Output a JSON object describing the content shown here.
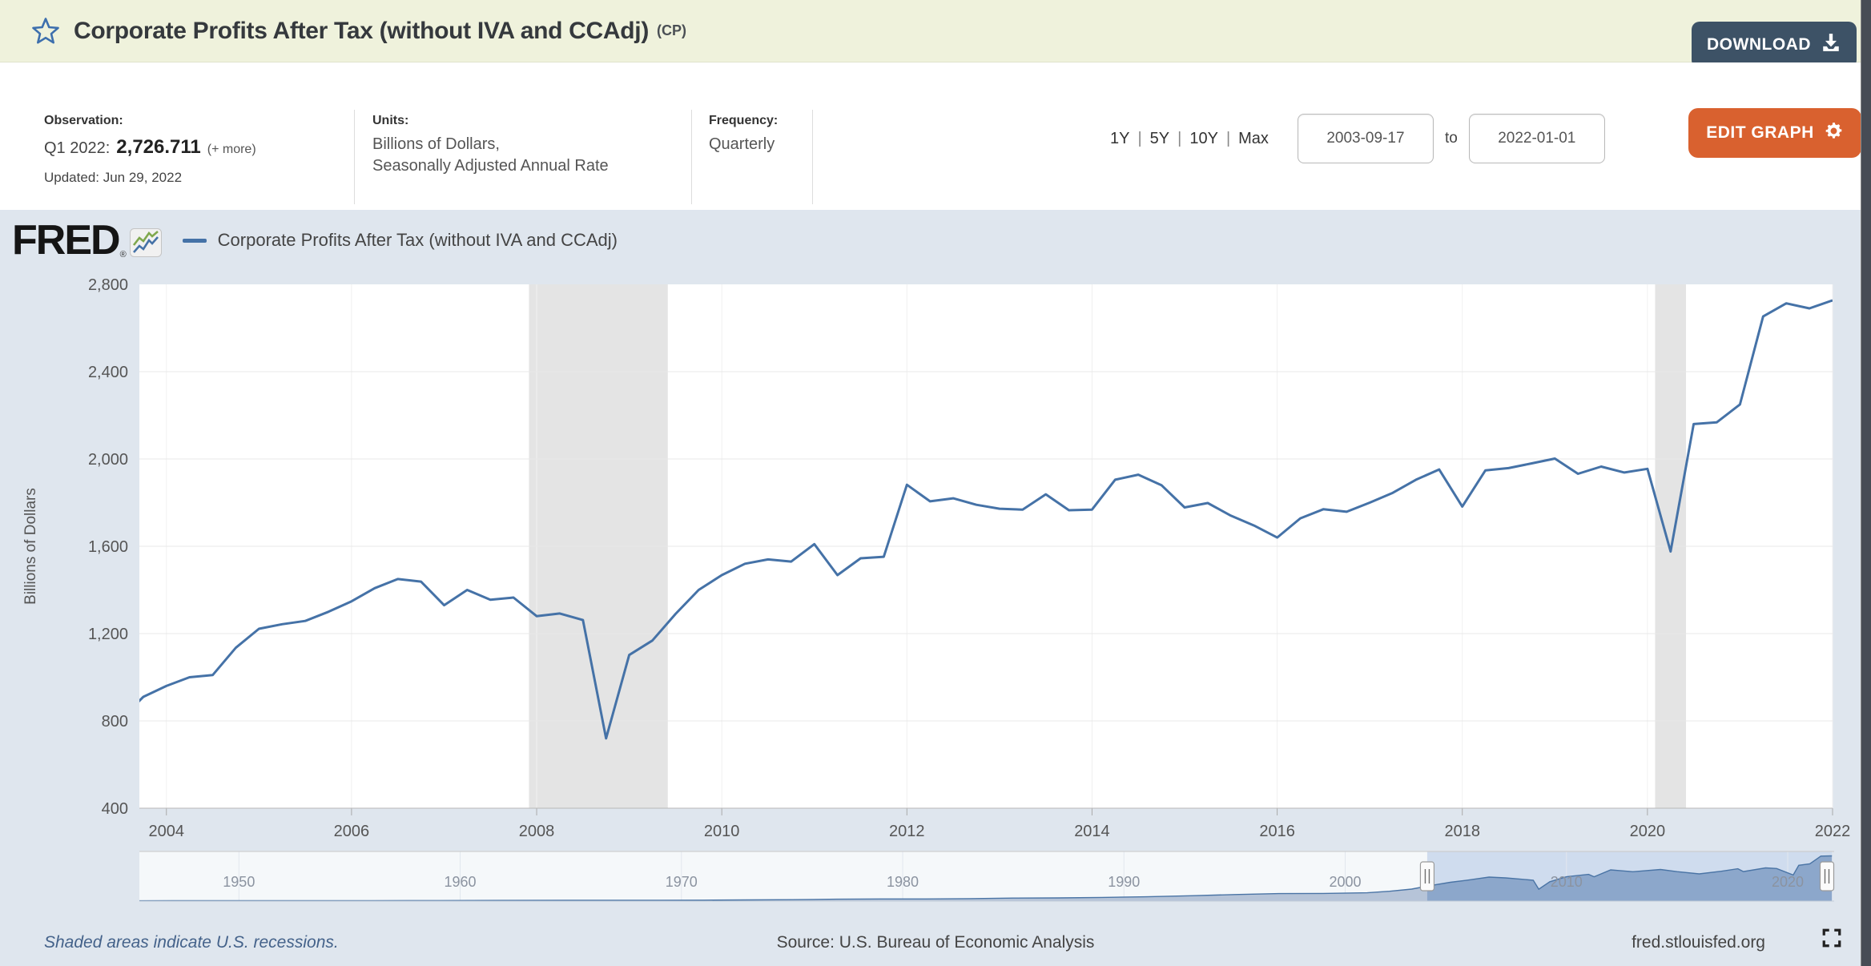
{
  "header": {
    "title": "Corporate Profits After Tax (without IVA and CCAdj)",
    "title_suffix": "(CP)",
    "download_label": "DOWNLOAD"
  },
  "info": {
    "observation_label": "Observation:",
    "observation_period": "Q1 2022:",
    "observation_value": "2,726.711",
    "observation_more": "(+ more)",
    "updated": "Updated: Jun 29, 2022",
    "units_label": "Units:",
    "units_line1": "Billions of Dollars,",
    "units_line2": "Seasonally Adjusted Annual Rate",
    "frequency_label": "Frequency:",
    "frequency_value": "Quarterly",
    "zoom_links": [
      "1Y",
      "5Y",
      "10Y",
      "Max"
    ],
    "zoom_separator": "|",
    "date_start": "2003-09-17",
    "date_to_label": "to",
    "date_end": "2022-01-01",
    "edit_graph_label": "EDIT GRAPH"
  },
  "chart_header": {
    "logo_text": "FRED",
    "logo_reg": "®",
    "legend_label": "Corporate Profits After Tax (without IVA and CCAdj)"
  },
  "footer": {
    "left": "Shaded areas indicate U.S. recessions.",
    "center": "Source: U.S. Bureau of Economic Analysis",
    "right": "fred.stlouisfed.org"
  },
  "colors": {
    "accent_blue": "#4572a7",
    "download_navy": "#3d5266",
    "edit_orange": "#d9612f",
    "header_bg": "#eff2dc",
    "chart_bg": "#dfe6ee",
    "recession_gray": "#e4e4e4",
    "grid_gray": "#e8e8e8",
    "axis_text": "#555555",
    "footer_blue": "#44628a",
    "nav_sel_bg": "#cfdcee",
    "nav_sel_area": "#8ca7cb",
    "nav_unsel_area": "#b6c4d8",
    "nav_unsel_bg": "#f5f8fa",
    "scrollbar": "#474c55"
  },
  "chart_data": {
    "type": "line",
    "title": "Corporate Profits After Tax (without IVA and CCAdj)",
    "ylabel": "Billions of Dollars",
    "units": "Billions of Dollars, Seasonally Adjusted Annual Rate",
    "frequency": "Quarterly",
    "x_start": 2003.5,
    "x_step": 0.25,
    "x_domain": [
      2003.708,
      2022.0
    ],
    "ylim": [
      400,
      2800
    ],
    "y_ticks": [
      400,
      800,
      1200,
      1600,
      2000,
      2400,
      2800
    ],
    "y_tick_labels": [
      "400",
      "800",
      "1,200",
      "1,600",
      "2,000",
      "2,400",
      "2,800"
    ],
    "x_ticks": [
      2004,
      2006,
      2008,
      2010,
      2012,
      2014,
      2016,
      2018,
      2020,
      2022
    ],
    "x_tick_labels": [
      "2004",
      "2006",
      "2008",
      "2010",
      "2012",
      "2014",
      "2016",
      "2018",
      "2020",
      "2022"
    ],
    "grid": true,
    "legend_position": "top-left",
    "values": [
      805,
      910,
      960,
      1000,
      1010,
      1135,
      1222,
      1243,
      1258,
      1300,
      1348,
      1408,
      1450,
      1438,
      1330,
      1400,
      1355,
      1365,
      1280,
      1292,
      1262,
      720,
      1102,
      1168,
      1290,
      1400,
      1468,
      1520,
      1540,
      1530,
      1610,
      1468,
      1545,
      1552,
      1882,
      1806,
      1820,
      1790,
      1772,
      1768,
      1838,
      1765,
      1768,
      1905,
      1928,
      1880,
      1778,
      1798,
      1740,
      1695,
      1640,
      1728,
      1770,
      1758,
      1800,
      1845,
      1905,
      1952,
      1782,
      1948,
      1958,
      1980,
      2002,
      1932,
      1965,
      1938,
      1955,
      1576,
      2160,
      2168,
      2250,
      2653,
      2713,
      2690,
      2726.711
    ],
    "recessions": [
      [
        2007.917,
        2009.417
      ],
      [
        2020.083,
        2020.417
      ]
    ],
    "navigator": {
      "x_domain": [
        1945.5,
        2022.1
      ],
      "ymax": 2800,
      "x_ticks": [
        1950,
        1960,
        1970,
        1980,
        1990,
        2000,
        2010,
        2020
      ],
      "x_tick_labels": [
        "1950",
        "1960",
        "1970",
        "1980",
        "1990",
        "2000",
        "2010",
        "2020"
      ],
      "selection": [
        2003.708,
        2022.0
      ],
      "points": [
        [
          1945.5,
          20
        ],
        [
          1947,
          22
        ],
        [
          1950,
          26
        ],
        [
          1953,
          28
        ],
        [
          1956,
          31
        ],
        [
          1959,
          36
        ],
        [
          1962,
          42
        ],
        [
          1965,
          52
        ],
        [
          1967,
          55
        ],
        [
          1969,
          50
        ],
        [
          1971,
          58
        ],
        [
          1973,
          72
        ],
        [
          1975,
          88
        ],
        [
          1977,
          118
        ],
        [
          1979,
          132
        ],
        [
          1981,
          128
        ],
        [
          1983,
          152
        ],
        [
          1985,
          182
        ],
        [
          1987,
          192
        ],
        [
          1989,
          222
        ],
        [
          1991,
          262
        ],
        [
          1993,
          322
        ],
        [
          1995,
          398
        ],
        [
          1997,
          452
        ],
        [
          1999,
          462
        ],
        [
          2001,
          502
        ],
        [
          2002,
          592
        ],
        [
          2003,
          722
        ],
        [
          2003.75,
          910
        ],
        [
          2004.75,
          1135
        ],
        [
          2005.5,
          1258
        ],
        [
          2006.5,
          1450
        ],
        [
          2007.25,
          1400
        ],
        [
          2008.5,
          1262
        ],
        [
          2008.75,
          720
        ],
        [
          2009.25,
          1168
        ],
        [
          2010,
          1468
        ],
        [
          2011,
          1610
        ],
        [
          2011.25,
          1468
        ],
        [
          2012,
          1882
        ],
        [
          2013,
          1772
        ],
        [
          2014.25,
          1905
        ],
        [
          2015,
          1778
        ],
        [
          2016,
          1640
        ],
        [
          2017,
          1800
        ],
        [
          2017.75,
          1952
        ],
        [
          2018,
          1782
        ],
        [
          2019,
          2002
        ],
        [
          2019.5,
          1965
        ],
        [
          2020.25,
          1576
        ],
        [
          2020.5,
          2160
        ],
        [
          2021,
          2250
        ],
        [
          2021.5,
          2713
        ],
        [
          2022,
          2726.7
        ]
      ]
    }
  }
}
